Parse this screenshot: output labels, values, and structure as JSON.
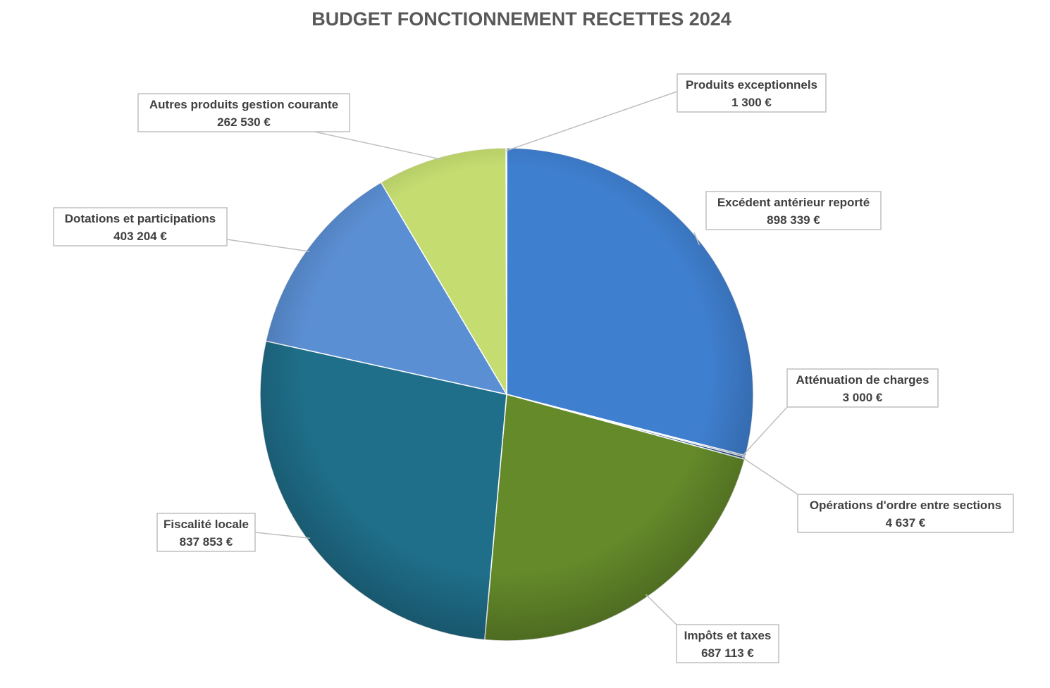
{
  "chart_data": {
    "type": "pie",
    "title": "BUDGET FONCTIONNEMENT RECETTES 2024",
    "slices": [
      {
        "label": "Excédent antérieur reporté",
        "value": 898339,
        "value_label": "898 339 €",
        "color": "#3f7fcf"
      },
      {
        "label": "Atténuation de charges",
        "value": 3000,
        "value_label": "3 000 €",
        "color": "#2c5f8f"
      },
      {
        "label": "Opérations d'ordre entre sections",
        "value": 4637,
        "value_label": "4 637 €",
        "color": "#1f4e85"
      },
      {
        "label": "Impôts et taxes",
        "value": 687113,
        "value_label": "687 113 €",
        "color": "#648a2a"
      },
      {
        "label": "Fiscalité locale",
        "value": 837853,
        "value_label": "837 853 €",
        "color": "#1f6f8b"
      },
      {
        "label": "Dotations et participations",
        "value": 403204,
        "value_label": "403 204 €",
        "color": "#5b8fd4"
      },
      {
        "label": "Autres produits gestion courante",
        "value": 262530,
        "value_label": "262 530 €",
        "color": "#c4dc70"
      },
      {
        "label": "Produits exceptionnels",
        "value": 1300,
        "value_label": "1 300 €",
        "color": "#d9e8a8"
      }
    ],
    "start_angle_deg": 0,
    "direction": "clockwise",
    "legend": "none",
    "data_labels": "callouts"
  }
}
